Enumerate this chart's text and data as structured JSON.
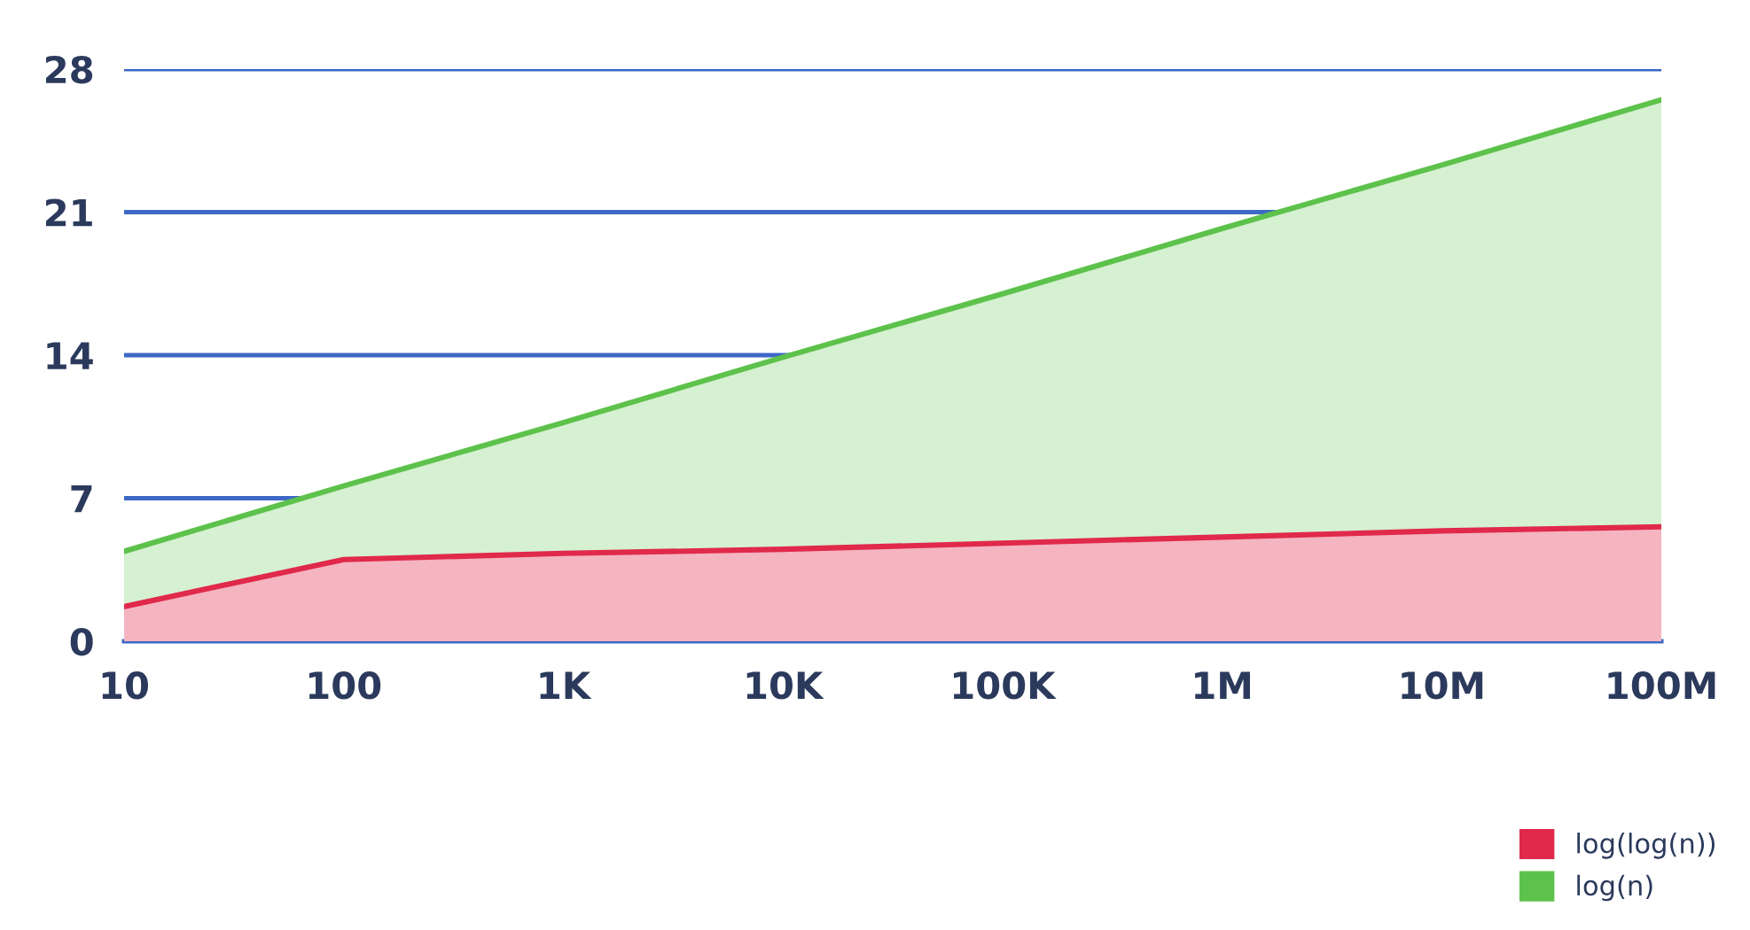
{
  "chart_data": {
    "type": "area",
    "categories": [
      "10",
      "100",
      "1K",
      "10K",
      "100K",
      "1M",
      "10M",
      "100M"
    ],
    "series": [
      {
        "name": "log(n)",
        "color": "#5dc24b",
        "values": [
          4.4,
          7.6,
          10.7,
          13.9,
          17.0,
          20.2,
          23.3,
          26.5
        ]
      },
      {
        "name": "log(log(n))",
        "color": "#e0294b",
        "values": [
          1.7,
          4.0,
          4.3,
          4.5,
          4.8,
          5.1,
          5.4,
          5.6
        ]
      }
    ],
    "ylim": [
      0,
      28
    ],
    "yticks": [
      0,
      7,
      14,
      21,
      28
    ],
    "grid": "y",
    "legend": "bottom right"
  }
}
